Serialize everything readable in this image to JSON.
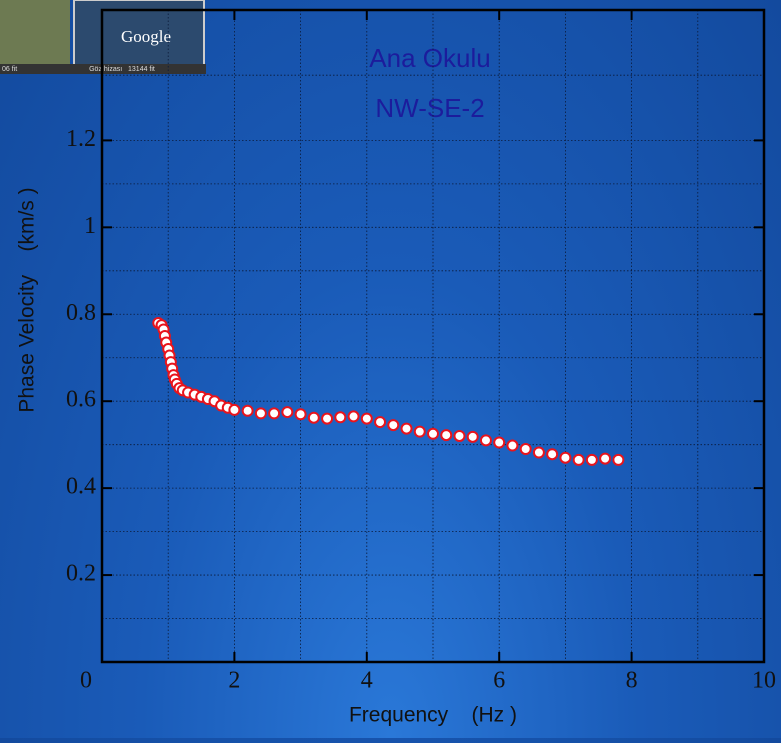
{
  "chart_data": {
    "type": "scatter",
    "title": "Ana Okulu",
    "subtitle": "NW-SE-2",
    "x_label": "Frequency    (Hz )",
    "y_label": "Phase Velocity    (km/s )",
    "x": [
      0.85,
      0.9,
      0.93,
      0.95,
      0.97,
      1.0,
      1.02,
      1.04,
      1.06,
      1.08,
      1.1,
      1.13,
      1.17,
      1.22,
      1.3,
      1.4,
      1.5,
      1.6,
      1.7,
      1.8,
      1.9,
      2.0,
      2.2,
      2.4,
      2.6,
      2.8,
      3.0,
      3.2,
      3.4,
      3.6,
      3.8,
      4.0,
      4.2,
      4.4,
      4.6,
      4.8,
      5.0,
      5.2,
      5.4,
      5.6,
      5.8,
      6.0,
      6.2,
      6.4,
      6.6,
      6.8,
      7.0,
      7.2,
      7.4,
      7.6,
      7.8
    ],
    "series": [
      {
        "color": "#e8141c",
        "values": [
          0.78,
          0.775,
          0.765,
          0.75,
          0.735,
          0.72,
          0.705,
          0.69,
          0.675,
          0.66,
          0.65,
          0.64,
          0.63,
          0.625,
          0.62,
          0.615,
          0.61,
          0.605,
          0.6,
          0.59,
          0.585,
          0.58,
          0.578,
          0.572,
          0.572,
          0.575,
          0.57,
          0.562,
          0.56,
          0.563,
          0.565,
          0.56,
          0.552,
          0.545,
          0.537,
          0.53,
          0.525,
          0.522,
          0.52,
          0.518,
          0.51,
          0.505,
          0.498,
          0.49,
          0.482,
          0.478,
          0.47,
          0.465,
          0.465,
          0.468,
          0.465
        ]
      }
    ],
    "xlim": [
      0,
      10
    ],
    "xticks": [
      0,
      2,
      4,
      6,
      8,
      10
    ],
    "ylim": [
      0,
      1.5
    ],
    "yticks": [
      0.2,
      0.4,
      0.6,
      0.8,
      1,
      1.2
    ],
    "grid": true
  },
  "overlay": {
    "brand": "Google",
    "eye_alt": "Göz hizası   13144 fit",
    "scale": "06 fit"
  }
}
